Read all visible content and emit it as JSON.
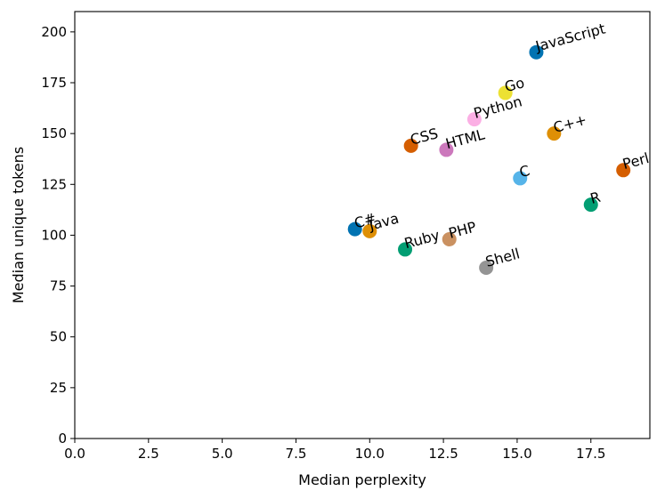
{
  "chart_data": {
    "type": "scatter",
    "title": "",
    "xlabel": "Median perplexity",
    "ylabel": "Median unique tokens",
    "xlim": [
      0,
      19.5
    ],
    "ylim": [
      0,
      210
    ],
    "xticks": [
      0,
      2.5,
      5,
      7.5,
      10,
      12.5,
      15,
      17.5
    ],
    "xtick_labels": [
      "0.0",
      "2.5",
      "5.0",
      "7.5",
      "10.0",
      "12.5",
      "15.0",
      "17.5"
    ],
    "yticks": [
      0,
      25,
      50,
      75,
      100,
      125,
      150,
      175,
      200
    ],
    "ytick_labels": [
      "0",
      "25",
      "50",
      "75",
      "100",
      "125",
      "150",
      "175",
      "200"
    ],
    "grid": false,
    "points": [
      {
        "label": "JavaScript",
        "x": 15.65,
        "y": 190,
        "color": "#0173b2"
      },
      {
        "label": "Go",
        "x": 14.6,
        "y": 170,
        "color": "#ece133"
      },
      {
        "label": "Python",
        "x": 13.55,
        "y": 157,
        "color": "#fbafe4"
      },
      {
        "label": "C++",
        "x": 16.25,
        "y": 150,
        "color": "#de8f05"
      },
      {
        "label": "CSS",
        "x": 11.4,
        "y": 144,
        "color": "#d55e00"
      },
      {
        "label": "HTML",
        "x": 12.6,
        "y": 142,
        "color": "#cc78bc"
      },
      {
        "label": "Perl",
        "x": 18.6,
        "y": 132,
        "color": "#d55e00"
      },
      {
        "label": "C",
        "x": 15.1,
        "y": 128,
        "color": "#56b4e9"
      },
      {
        "label": "R",
        "x": 17.5,
        "y": 115,
        "color": "#029e73"
      },
      {
        "label": "C#",
        "x": 9.5,
        "y": 103,
        "color": "#0173b2"
      },
      {
        "label": "Java",
        "x": 10.0,
        "y": 102,
        "color": "#de8f05"
      },
      {
        "label": "PHP",
        "x": 12.7,
        "y": 98,
        "color": "#ca9161"
      },
      {
        "label": "Ruby",
        "x": 11.2,
        "y": 93,
        "color": "#029e73"
      },
      {
        "label": "Shell",
        "x": 13.95,
        "y": 84,
        "color": "#949494"
      }
    ]
  }
}
